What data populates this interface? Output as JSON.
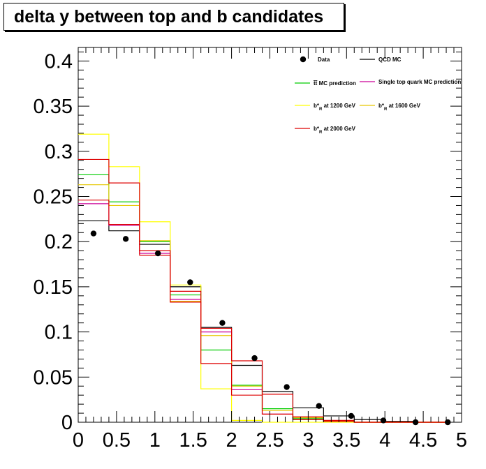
{
  "title": "delta y between top and b candidates",
  "chart_data": {
    "type": "line",
    "title": "delta y between top and b candidates",
    "xlabel": "",
    "ylabel": "",
    "xlim": [
      0,
      5
    ],
    "ylim": [
      0,
      0.415
    ],
    "x_ticks": [
      "0",
      "0.5",
      "1",
      "1.5",
      "2",
      "2.5",
      "3",
      "3.5",
      "4",
      "4.5",
      "5"
    ],
    "y_ticks": [
      "0",
      "0.05",
      "0.1",
      "0.15",
      "0.2",
      "0.25",
      "0.3",
      "0.35",
      "0.4"
    ],
    "bin_edges": [
      0,
      0.4,
      0.8,
      1.2,
      1.6,
      2.0,
      2.4,
      2.8,
      3.2,
      3.6,
      4.0,
      4.4,
      4.8
    ],
    "points": {
      "name": "Data",
      "x": [
        0.2,
        0.62,
        1.04,
        1.46,
        1.88,
        2.3,
        2.72,
        3.14,
        3.56,
        3.98,
        4.4,
        4.82
      ],
      "y": [
        0.209,
        0.203,
        0.187,
        0.155,
        0.11,
        0.071,
        0.039,
        0.018,
        0.007,
        0.002,
        0.0,
        0.0
      ]
    },
    "series": [
      {
        "name": "QCD MC",
        "color": "#000000",
        "values": [
          0.223,
          0.212,
          0.197,
          0.15,
          0.105,
          0.063,
          0.034,
          0.016,
          0.007,
          0.003,
          0.001,
          0.0
        ]
      },
      {
        "name": "tt̄ MC prediction",
        "color": "#00cc00",
        "values": [
          0.274,
          0.244,
          0.2,
          0.141,
          0.08,
          0.041,
          0.015,
          0.004,
          0.001,
          0.0,
          0.0,
          0.0
        ]
      },
      {
        "name": "Single top quark MC prediction",
        "color": "#cc0099",
        "values": [
          0.242,
          0.218,
          0.187,
          0.136,
          0.1,
          0.036,
          0.009,
          0.003,
          0.001,
          0.0,
          0.0,
          0.0
        ]
      },
      {
        "name": "b*R at 1200 GeV",
        "color": "#ffff00",
        "values": [
          0.319,
          0.283,
          0.222,
          0.152,
          0.037,
          0.002,
          0.0,
          0.0,
          0.0,
          0.0,
          0.0,
          0.0
        ]
      },
      {
        "name": "b*R at 1600 GeV",
        "color": "#e6c800",
        "values": [
          0.263,
          0.24,
          0.201,
          0.134,
          0.096,
          0.04,
          0.013,
          0.005,
          0.001,
          0.0,
          0.0,
          0.0
        ]
      },
      {
        "name": "b*R at 2000 GeV",
        "color": "#dd0000",
        "values": [
          0.291,
          0.265,
          0.185,
          0.133,
          0.065,
          0.03,
          0.009,
          0.003,
          0.001,
          0.0,
          0.0,
          0.0
        ]
      },
      {
        "name": "b*R at 2000 GeV (low)",
        "color": "#dd0000",
        "unlabeled": true,
        "values": [
          0.246,
          0.219,
          0.19,
          0.145,
          0.104,
          0.068,
          0.031,
          0.006,
          0.002,
          0.0,
          0.0,
          0.0
        ]
      }
    ],
    "legend": {
      "placement": "top-right",
      "entries": [
        {
          "label": "Data",
          "kind": "marker",
          "color": "#000000"
        },
        {
          "label": "QCD MC",
          "kind": "line",
          "color": "#000000"
        },
        {
          "label": "t",
          "suffix": " MC prediction",
          "bar": "t",
          "kind": "line",
          "color": "#00cc00"
        },
        {
          "label": "Single top quark MC prediction",
          "kind": "line",
          "color": "#cc0099"
        },
        {
          "label": "b*",
          "sub": "R",
          "suffix": " at 1200 GeV",
          "kind": "line",
          "color": "#ffff00"
        },
        {
          "label": "b*",
          "sub": "R",
          "suffix": " at 1600 GeV",
          "kind": "line",
          "color": "#e6c800"
        },
        {
          "label": "b*",
          "sub": "R",
          "suffix": " at 2000 GeV",
          "kind": "line",
          "color": "#dd0000"
        }
      ]
    }
  }
}
